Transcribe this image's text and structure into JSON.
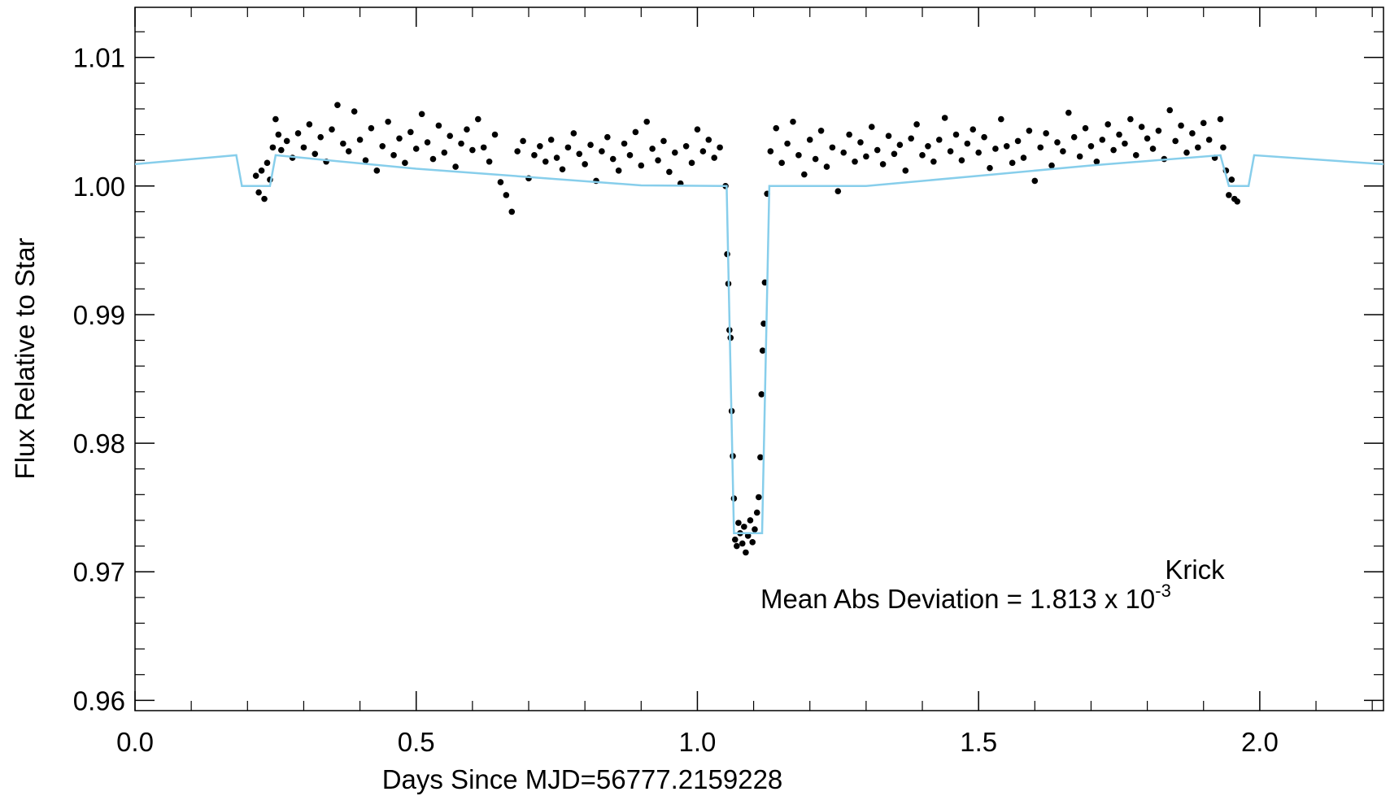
{
  "chart_data": {
    "type": "scatter",
    "xlabel": "Days Since MJD=56777.2159228",
    "ylabel": "Flux Relative to Star",
    "xlim": [
      0,
      2.22
    ],
    "ylim": [
      0.9592,
      1.0139
    ],
    "xticks": [
      {
        "value": 0,
        "label": "0.0"
      },
      0.5,
      {
        "value": 1,
        "label": "1.0"
      },
      1.5,
      {
        "value": 2,
        "label": "2.0"
      }
    ],
    "yticks": [
      0.96,
      0.97,
      0.98,
      0.99,
      {
        "value": 1,
        "label": "1.00"
      },
      1.01
    ],
    "xminorticks": [
      0.1,
      0.2,
      0.3,
      0.4,
      0.6,
      0.7,
      0.8,
      0.9,
      1.1,
      1.2,
      1.3,
      1.4,
      1.6,
      1.7,
      1.8,
      1.9,
      2.1,
      2.2
    ],
    "yminorticks": [
      0.962,
      0.964,
      0.966,
      0.968,
      0.972,
      0.974,
      0.976,
      0.978,
      0.982,
      0.984,
      0.986,
      0.988,
      0.992,
      0.994,
      0.996,
      0.998,
      1.002,
      1.004,
      1.006,
      1.008,
      1.012
    ],
    "color": "#000000",
    "x": [
      0.215,
      0.22,
      0.225,
      0.23,
      0.235,
      0.24,
      0.245,
      0.25,
      0.255,
      0.26,
      0.27,
      0.28,
      0.29,
      0.3,
      0.31,
      0.32,
      0.33,
      0.34,
      0.35,
      0.36,
      0.37,
      0.38,
      0.39,
      0.4,
      0.41,
      0.42,
      0.43,
      0.44,
      0.45,
      0.46,
      0.47,
      0.48,
      0.49,
      0.5,
      0.51,
      0.52,
      0.53,
      0.54,
      0.55,
      0.56,
      0.57,
      0.58,
      0.59,
      0.6,
      0.61,
      0.62,
      0.63,
      0.64,
      0.65,
      0.66,
      0.67,
      0.68,
      0.69,
      0.7,
      0.71,
      0.72,
      0.73,
      0.74,
      0.75,
      0.76,
      0.77,
      0.78,
      0.79,
      0.8,
      0.81,
      0.82,
      0.83,
      0.84,
      0.85,
      0.86,
      0.87,
      0.88,
      0.89,
      0.9,
      0.91,
      0.92,
      0.93,
      0.94,
      0.95,
      0.96,
      0.97,
      0.98,
      0.99,
      1.0,
      1.01,
      1.02,
      1.03,
      1.04,
      1.05,
      1.053,
      1.055,
      1.057,
      1.059,
      1.061,
      1.063,
      1.065,
      1.067,
      1.07,
      1.073,
      1.076,
      1.08,
      1.083,
      1.086,
      1.09,
      1.094,
      1.098,
      1.102,
      1.106,
      1.109,
      1.112,
      1.114,
      1.116,
      1.118,
      1.12,
      1.124,
      1.13,
      1.14,
      1.15,
      1.16,
      1.17,
      1.18,
      1.19,
      1.2,
      1.21,
      1.22,
      1.23,
      1.24,
      1.25,
      1.26,
      1.27,
      1.28,
      1.29,
      1.3,
      1.31,
      1.32,
      1.33,
      1.34,
      1.35,
      1.36,
      1.37,
      1.38,
      1.39,
      1.4,
      1.41,
      1.42,
      1.43,
      1.44,
      1.45,
      1.46,
      1.47,
      1.48,
      1.49,
      1.5,
      1.51,
      1.52,
      1.53,
      1.54,
      1.55,
      1.56,
      1.57,
      1.58,
      1.59,
      1.6,
      1.61,
      1.62,
      1.63,
      1.64,
      1.65,
      1.66,
      1.67,
      1.68,
      1.69,
      1.7,
      1.71,
      1.72,
      1.73,
      1.74,
      1.75,
      1.76,
      1.77,
      1.78,
      1.79,
      1.8,
      1.81,
      1.82,
      1.83,
      1.84,
      1.85,
      1.86,
      1.87,
      1.88,
      1.89,
      1.9,
      1.91,
      1.92,
      1.93,
      1.935,
      1.94,
      1.945,
      1.95,
      1.955,
      1.96
    ],
    "y": [
      1.0008,
      0.9995,
      1.0012,
      0.999,
      1.0018,
      1.0005,
      1.003,
      1.0052,
      1.004,
      1.0028,
      1.0035,
      1.0022,
      1.0041,
      1.003,
      1.0048,
      1.0025,
      1.0038,
      1.0019,
      1.0044,
      1.0063,
      1.0033,
      1.0027,
      1.0058,
      1.0036,
      1.002,
      1.0045,
      1.0012,
      1.0031,
      1.005,
      1.0024,
      1.0037,
      1.0018,
      1.0042,
      1.0029,
      1.0056,
      1.0034,
      1.0021,
      1.0047,
      1.0026,
      1.0039,
      1.0015,
      1.0033,
      1.0044,
      1.0028,
      1.0052,
      1.003,
      1.0019,
      1.004,
      1.0003,
      0.9993,
      0.998,
      1.0027,
      1.0035,
      1.0006,
      1.0024,
      1.0031,
      1.0019,
      1.0036,
      1.0022,
      1.0013,
      1.003,
      1.0041,
      1.0025,
      1.0017,
      1.0032,
      1.0004,
      1.0027,
      1.0038,
      1.0021,
      1.0012,
      1.0033,
      1.0024,
      1.0042,
      1.0016,
      1.005,
      1.0029,
      1.002,
      1.0035,
      1.0011,
      1.0026,
      1.0002,
      1.0031,
      1.0018,
      1.0044,
      1.0027,
      1.0036,
      1.0022,
      1.003,
      1.0,
      0.9947,
      0.9924,
      0.9888,
      0.9882,
      0.9825,
      0.979,
      0.9757,
      0.9725,
      0.972,
      0.9738,
      0.973,
      0.9722,
      0.9735,
      0.9715,
      0.9728,
      0.974,
      0.9723,
      0.9733,
      0.9746,
      0.9758,
      0.9789,
      0.9838,
      0.9872,
      0.9893,
      0.9925,
      0.9994,
      1.0027,
      1.0045,
      1.0018,
      1.0033,
      1.005,
      1.0024,
      1.0009,
      1.0036,
      1.0021,
      1.0043,
      1.0015,
      1.003,
      0.9996,
      1.0026,
      1.004,
      1.0019,
      1.0034,
      1.0023,
      1.0046,
      1.0028,
      1.0017,
      1.0039,
      1.0025,
      1.0032,
      1.0012,
      1.0037,
      1.0048,
      1.0024,
      1.0031,
      1.0019,
      1.0036,
      1.0053,
      1.0027,
      1.004,
      1.002,
      1.0033,
      1.0044,
      1.0026,
      1.0038,
      1.0014,
      1.0029,
      1.0052,
      1.0031,
      1.0018,
      1.0035,
      1.0022,
      1.0043,
      1.0004,
      1.003,
      1.0041,
      1.0016,
      1.0034,
      1.0027,
      1.0057,
      1.0038,
      1.0023,
      1.0045,
      1.0031,
      1.0019,
      1.0036,
      1.0048,
      1.0028,
      1.004,
      1.0033,
      1.0052,
      1.0024,
      1.0046,
      1.0037,
      1.0029,
      1.0043,
      1.0021,
      1.0059,
      1.0035,
      1.0047,
      1.0026,
      1.0041,
      1.003,
      1.0049,
      1.0036,
      1.0022,
      1.0052,
      1.003,
      1.0012,
      0.9993,
      1.0005,
      0.999,
      0.9988
    ],
    "line": {
      "color": "#87ceeb",
      "x": [
        0,
        0.18,
        0.19,
        0.24,
        0.25,
        0.5,
        0.7,
        0.9,
        1.052,
        1.065,
        1.115,
        1.128,
        1.3,
        1.5,
        1.7,
        1.93,
        1.945,
        1.98,
        1.99,
        2.22
      ],
      "y": [
        1.0017,
        1.0024,
        1.0,
        1.0,
        1.0024,
        1.00135,
        1.0007,
        1.00005,
        1.0,
        0.973,
        0.973,
        1.0,
        1.0,
        1.0008,
        1.0016,
        1.0024,
        1.0,
        1.0,
        1.0024,
        1.0017
      ]
    },
    "annotations": [
      {
        "text": "Krick"
      },
      {
        "text": "Mean Abs Deviation = 1.813 x 10",
        "superscript": "-3"
      }
    ]
  }
}
